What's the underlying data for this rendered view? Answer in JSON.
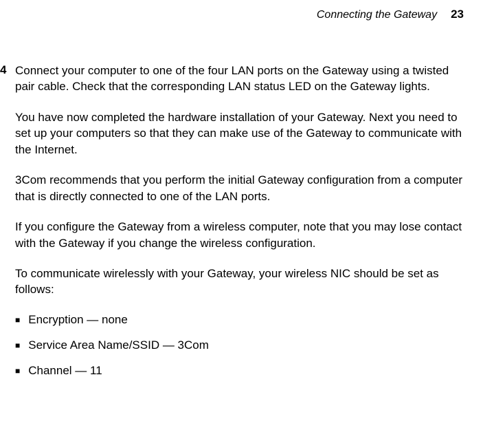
{
  "header": {
    "title": "Connecting the Gateway",
    "page_number": "23"
  },
  "step": {
    "number": "4",
    "paragraphs": [
      "Connect your computer to one of the four LAN ports on the Gateway using a twisted pair cable. Check that the corresponding LAN status LED on the Gateway lights.",
      "You have now completed the hardware installation of your Gateway. Next you need to set up your computers so that they can make use of the Gateway to communicate with the Internet.",
      "3Com recommends that you perform the initial Gateway configuration from a computer that is directly connected to one of the LAN ports.",
      "If you configure the Gateway from a wireless computer, note that you may lose contact with the Gateway if you change the wireless configuration.",
      "To communicate wirelessly with your Gateway, your wireless NIC should be set as follows:"
    ],
    "bullets": [
      "Encryption — none",
      "Service Area Name/SSID — 3Com",
      "Channel — 11"
    ]
  }
}
